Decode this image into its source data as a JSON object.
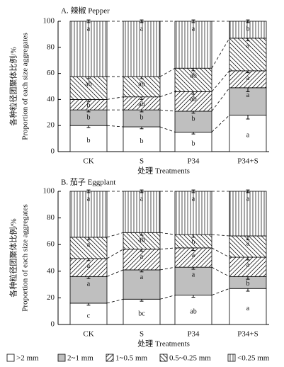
{
  "chart_data": [
    {
      "type": "stacked-bar",
      "title": "A. 辣椒 Pepper",
      "ylabel": "各种粒径团聚体比例/%",
      "ylabel2": "Proportion of each size aggregates",
      "xlabel": "处理 Treatments",
      "categories": [
        "CK",
        "S",
        "P34",
        "P34+S"
      ],
      "ylim": [
        0,
        100
      ],
      "yticks": [
        0,
        20,
        40,
        60,
        80,
        100
      ],
      "series": [
        {
          "name": ">2 mm",
          "color": "#ffffff",
          "pattern": "solid",
          "values": [
            20,
            19,
            15,
            28
          ],
          "errors": [
            1.5,
            1.5,
            1.5,
            3
          ],
          "letters": [
            "b",
            "b",
            "b",
            "a"
          ]
        },
        {
          "name": "2~1 mm",
          "color": "#bfbfbf",
          "pattern": "solid",
          "values": [
            12,
            13,
            16,
            21
          ],
          "errors": [
            1.5,
            1.5,
            1.5,
            3
          ],
          "letters": [
            "b",
            "b",
            "b",
            "a"
          ]
        },
        {
          "name": "1~0.5 mm",
          "color": "#ffffff",
          "pattern": "diag-up",
          "values": [
            8,
            10,
            15,
            13
          ],
          "errors": [
            1.5,
            2,
            2,
            1.5
          ],
          "letters": [
            "b",
            "ab",
            "ab",
            "a"
          ]
        },
        {
          "name": "0.5~0.25 mm",
          "color": "#ffffff",
          "pattern": "diag-down",
          "values": [
            17.5,
            15.5,
            18,
            25
          ],
          "errors": [
            1.5,
            1.5,
            2,
            2
          ],
          "letters": [
            "ab",
            "ab",
            "ab",
            "a"
          ]
        },
        {
          "name": "<0.25 mm",
          "color": "#ffffff",
          "pattern": "vertical",
          "values": [
            42.5,
            42.5,
            36,
            13
          ],
          "errors": [
            1,
            1,
            1,
            1
          ],
          "letters": [
            "a",
            "a",
            "a",
            "b"
          ]
        }
      ]
    },
    {
      "type": "stacked-bar",
      "title": "B. 茄子 Eggplant",
      "ylabel": "各种粒径团聚体比例/%",
      "ylabel2": "Proportion of each size aggregates",
      "xlabel": "处理 Treatments",
      "categories": [
        "CK",
        "S",
        "P34",
        "P34+S"
      ],
      "ylim": [
        0,
        100
      ],
      "yticks": [
        0,
        20,
        40,
        60,
        80,
        100
      ],
      "series": [
        {
          "name": ">2 mm",
          "color": "#ffffff",
          "pattern": "solid",
          "values": [
            16,
            19,
            22,
            27
          ],
          "errors": [
            1.5,
            1.5,
            1.5,
            2
          ],
          "letters": [
            "c",
            "bc",
            "ab",
            "a"
          ]
        },
        {
          "name": "2~1 mm",
          "color": "#bfbfbf",
          "pattern": "solid",
          "values": [
            20,
            22,
            21,
            9
          ],
          "errors": [
            1.5,
            1.5,
            1.5,
            2
          ],
          "letters": [
            "a",
            "a",
            "a",
            "b"
          ]
        },
        {
          "name": "1~0.5 mm",
          "color": "#ffffff",
          "pattern": "diag-up",
          "values": [
            13.5,
            15.5,
            14.5,
            14.5
          ],
          "errors": [
            1.5,
            1.5,
            2,
            2
          ],
          "letters": [
            "a",
            "a",
            "a",
            "a"
          ]
        },
        {
          "name": "0.5~0.25 mm",
          "color": "#ffffff",
          "pattern": "diag-down",
          "values": [
            16,
            12.5,
            10,
            16
          ],
          "errors": [
            2,
            2,
            2,
            3
          ],
          "letters": [
            "a",
            "ab",
            "b",
            "a"
          ]
        },
        {
          "name": "<0.25 mm",
          "color": "#ffffff",
          "pattern": "vertical",
          "values": [
            34.5,
            31,
            32.5,
            33.5
          ],
          "errors": [
            1,
            1,
            1,
            1
          ],
          "letters": [
            "a",
            "a",
            "a",
            "a"
          ]
        }
      ]
    }
  ]
}
